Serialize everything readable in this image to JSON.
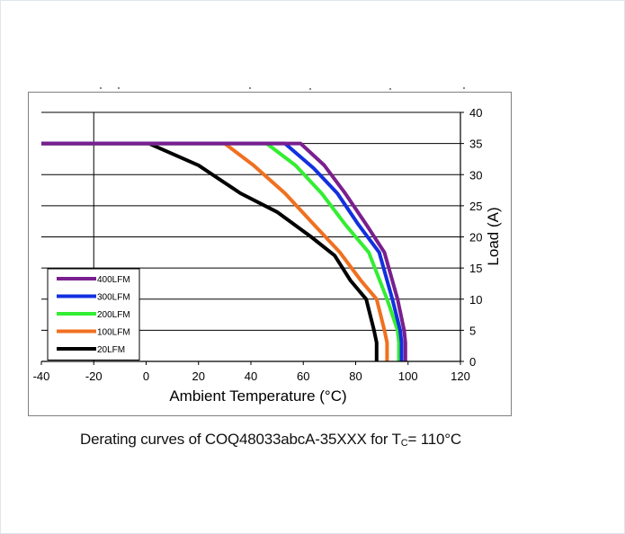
{
  "caption": {
    "text": "Derating curves of COQ48033abcA-35XXX for T",
    "sub": "C",
    "suffix": "= 110°C"
  },
  "chart_data": {
    "type": "line",
    "title": "",
    "xlabel": "Ambient Temperature (°C)",
    "ylabel": "Load (A)",
    "xlim": [
      -40,
      120
    ],
    "ylim": [
      0,
      40
    ],
    "x_ticks": [
      -40,
      -20,
      0,
      20,
      40,
      60,
      80,
      100,
      120
    ],
    "y_ticks": [
      0,
      5,
      10,
      15,
      20,
      25,
      30,
      35,
      40
    ],
    "grid": "horizontal",
    "legend_position": "bottom-left",
    "series": [
      {
        "name": "400LFM",
        "color": "#7a1f8f",
        "points": [
          [
            -40,
            35
          ],
          [
            59,
            35
          ],
          [
            68,
            31.5
          ],
          [
            76,
            27
          ],
          [
            84,
            22
          ],
          [
            91,
            17.5
          ],
          [
            96,
            10
          ],
          [
            98.5,
            5
          ],
          [
            99,
            3
          ],
          [
            99,
            0
          ]
        ]
      },
      {
        "name": "300LFM",
        "color": "#1230e0",
        "points": [
          [
            -40,
            35
          ],
          [
            53,
            35
          ],
          [
            64,
            31
          ],
          [
            73,
            27
          ],
          [
            81,
            22
          ],
          [
            89,
            17.5
          ],
          [
            94,
            10
          ],
          [
            97,
            5
          ],
          [
            97.5,
            3
          ],
          [
            97.5,
            0
          ]
        ]
      },
      {
        "name": "200LFM",
        "color": "#33ee33",
        "points": [
          [
            -40,
            35
          ],
          [
            46,
            35
          ],
          [
            57,
            31.5
          ],
          [
            67,
            27
          ],
          [
            76,
            22
          ],
          [
            85,
            17.5
          ],
          [
            92,
            10
          ],
          [
            96,
            5
          ],
          [
            96.5,
            3
          ],
          [
            96.5,
            0
          ]
        ]
      },
      {
        "name": "100LFM",
        "color": "#f07020",
        "points": [
          [
            -40,
            35
          ],
          [
            30,
            35
          ],
          [
            41,
            31.5
          ],
          [
            53,
            27
          ],
          [
            64,
            22
          ],
          [
            74,
            17.5
          ],
          [
            82,
            13
          ],
          [
            88,
            10
          ],
          [
            91,
            5
          ],
          [
            92,
            3
          ],
          [
            92,
            0
          ]
        ]
      },
      {
        "name": "20LFM",
        "color": "#000000",
        "points": [
          [
            -40,
            35
          ],
          [
            1,
            35
          ],
          [
            20,
            31.5
          ],
          [
            36,
            27
          ],
          [
            50,
            24
          ],
          [
            63,
            20
          ],
          [
            72,
            17
          ],
          [
            78,
            13
          ],
          [
            84,
            10
          ],
          [
            87,
            5
          ],
          [
            88,
            3
          ],
          [
            88,
            0
          ]
        ]
      }
    ]
  }
}
